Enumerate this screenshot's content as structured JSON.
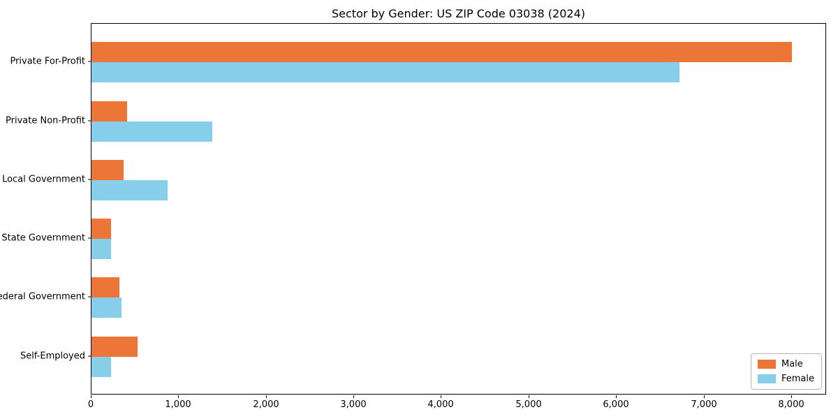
{
  "chart_data": {
    "type": "bar",
    "orientation": "horizontal",
    "title": "Sector by Gender: US ZIP Code 03038 (2024)",
    "categories": [
      "Private For-Profit",
      "Private Non-Profit",
      "Local Government",
      "State Government",
      "Federal Government",
      "Self-Employed"
    ],
    "series": [
      {
        "name": "Male",
        "color": "#EB7637",
        "values": [
          8000,
          410,
          370,
          220,
          320,
          530
        ]
      },
      {
        "name": "Female",
        "color": "#87CEEB",
        "values": [
          6720,
          1380,
          870,
          225,
          340,
          220
        ]
      }
    ],
    "xlabel": "",
    "ylabel": "",
    "xlim": [
      0,
      8400
    ],
    "x_ticks": [
      {
        "value": 0,
        "label": "0"
      },
      {
        "value": 1000,
        "label": "1,000"
      },
      {
        "value": 2000,
        "label": "2,000"
      },
      {
        "value": 3000,
        "label": "3,000"
      },
      {
        "value": 4000,
        "label": "4,000"
      },
      {
        "value": 5000,
        "label": "5,000"
      },
      {
        "value": 6000,
        "label": "6,000"
      },
      {
        "value": 7000,
        "label": "7,000"
      },
      {
        "value": 8000,
        "label": "8,000"
      }
    ],
    "legend_position": "lower right",
    "grid": false,
    "background_color": "#ffffff",
    "axis_color": "#000000"
  }
}
